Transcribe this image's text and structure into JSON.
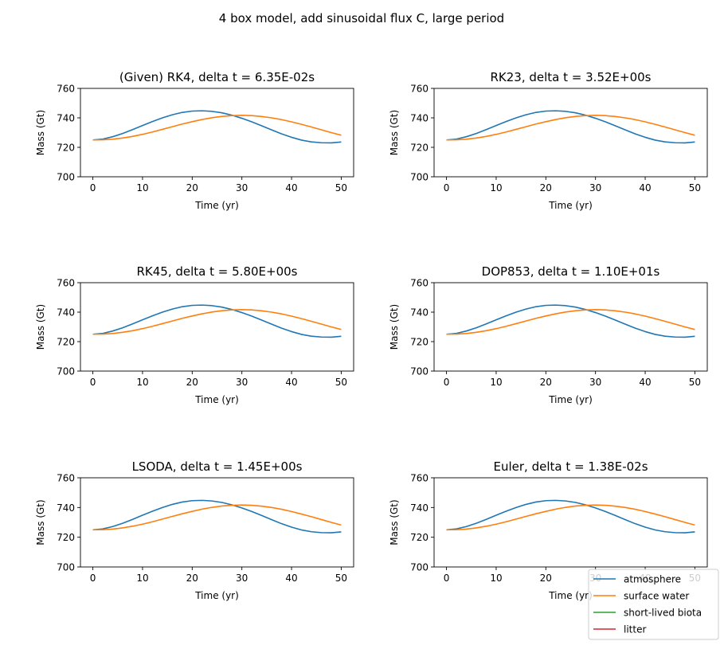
{
  "figure": {
    "title": "4 box model, add sinusoidal flux C, large period"
  },
  "chart_data": [
    {
      "type": "line",
      "title": "(Given) RK4, delta t = 6.35E-02s",
      "xlabel": "Time (yr)",
      "ylabel": "Mass (Gt)",
      "xlim": [
        -2.5,
        52.5
      ],
      "ylim": [
        700,
        760
      ],
      "xticks": [
        0,
        10,
        20,
        30,
        40,
        50
      ],
      "yticks": [
        700,
        720,
        740,
        760
      ],
      "series": [
        {
          "name": "atmosphere",
          "color": "#1f77b4",
          "x": [
            0,
            2,
            4,
            6,
            8,
            10,
            12,
            14,
            16,
            18,
            20,
            22,
            24,
            26,
            28,
            30,
            32,
            34,
            36,
            38,
            40,
            42,
            44,
            46,
            48,
            50
          ],
          "y": [
            725,
            725.6,
            727.2,
            729.4,
            732.0,
            734.8,
            737.5,
            740.0,
            742.1,
            743.7,
            744.6,
            744.8,
            744.4,
            743.4,
            741.8,
            739.7,
            737.3,
            734.6,
            731.8,
            729.1,
            726.8,
            724.9,
            723.7,
            723.1,
            723.0,
            723.6
          ]
        },
        {
          "name": "surface water",
          "color": "#ff7f0e",
          "x": [
            0,
            2,
            4,
            6,
            8,
            10,
            12,
            14,
            16,
            18,
            20,
            22,
            24,
            26,
            28,
            30,
            32,
            34,
            36,
            38,
            40,
            42,
            44,
            46,
            48,
            50
          ],
          "y": [
            725,
            725.1,
            725.5,
            726.3,
            727.4,
            728.8,
            730.4,
            732.2,
            734.0,
            735.8,
            737.4,
            738.9,
            740.1,
            741.0,
            741.5,
            741.7,
            741.5,
            740.9,
            740.0,
            738.8,
            737.3,
            735.6,
            733.8,
            731.9,
            730.0,
            728.2
          ]
        },
        {
          "name": "short-lived biota",
          "color": "#2ca02c",
          "x": [],
          "y": []
        },
        {
          "name": "litter",
          "color": "#d62728",
          "x": [],
          "y": []
        }
      ]
    },
    {
      "type": "line",
      "title": "RK23, delta t = 3.52E+00s",
      "xlabel": "Time (yr)",
      "ylabel": "Mass (Gt)",
      "xlim": [
        -2.5,
        52.5
      ],
      "ylim": [
        700,
        760
      ],
      "xticks": [
        0,
        10,
        20,
        30,
        40,
        50
      ],
      "yticks": [
        700,
        720,
        740,
        760
      ],
      "series": [
        {
          "name": "atmosphere",
          "color": "#1f77b4",
          "x": [
            0,
            2,
            4,
            6,
            8,
            10,
            12,
            14,
            16,
            18,
            20,
            22,
            24,
            26,
            28,
            30,
            32,
            34,
            36,
            38,
            40,
            42,
            44,
            46,
            48,
            50
          ],
          "y": [
            725,
            725.6,
            727.2,
            729.4,
            732.0,
            734.8,
            737.5,
            740.0,
            742.1,
            743.7,
            744.6,
            744.8,
            744.4,
            743.4,
            741.8,
            739.7,
            737.3,
            734.6,
            731.8,
            729.1,
            726.8,
            724.9,
            723.7,
            723.1,
            723.0,
            723.6
          ]
        },
        {
          "name": "surface water",
          "color": "#ff7f0e",
          "x": [
            0,
            2,
            4,
            6,
            8,
            10,
            12,
            14,
            16,
            18,
            20,
            22,
            24,
            26,
            28,
            30,
            32,
            34,
            36,
            38,
            40,
            42,
            44,
            46,
            48,
            50
          ],
          "y": [
            725,
            725.1,
            725.5,
            726.3,
            727.4,
            728.8,
            730.4,
            732.2,
            734.0,
            735.8,
            737.4,
            738.9,
            740.1,
            741.0,
            741.5,
            741.7,
            741.5,
            740.9,
            740.0,
            738.8,
            737.3,
            735.6,
            733.8,
            731.9,
            730.0,
            728.2
          ]
        },
        {
          "name": "short-lived biota",
          "color": "#2ca02c",
          "x": [],
          "y": []
        },
        {
          "name": "litter",
          "color": "#d62728",
          "x": [],
          "y": []
        }
      ]
    },
    {
      "type": "line",
      "title": "RK45, delta t = 5.80E+00s",
      "xlabel": "Time (yr)",
      "ylabel": "Mass (Gt)",
      "xlim": [
        -2.5,
        52.5
      ],
      "ylim": [
        700,
        760
      ],
      "xticks": [
        0,
        10,
        20,
        30,
        40,
        50
      ],
      "yticks": [
        700,
        720,
        740,
        760
      ],
      "series": [
        {
          "name": "atmosphere",
          "color": "#1f77b4",
          "x": [
            0,
            2,
            4,
            6,
            8,
            10,
            12,
            14,
            16,
            18,
            20,
            22,
            24,
            26,
            28,
            30,
            32,
            34,
            36,
            38,
            40,
            42,
            44,
            46,
            48,
            50
          ],
          "y": [
            725,
            725.6,
            727.2,
            729.4,
            732.0,
            734.8,
            737.5,
            740.0,
            742.1,
            743.7,
            744.6,
            744.8,
            744.4,
            743.4,
            741.8,
            739.7,
            737.3,
            734.6,
            731.8,
            729.1,
            726.8,
            724.9,
            723.7,
            723.1,
            723.0,
            723.6
          ]
        },
        {
          "name": "surface water",
          "color": "#ff7f0e",
          "x": [
            0,
            2,
            4,
            6,
            8,
            10,
            12,
            14,
            16,
            18,
            20,
            22,
            24,
            26,
            28,
            30,
            32,
            34,
            36,
            38,
            40,
            42,
            44,
            46,
            48,
            50
          ],
          "y": [
            725,
            725.1,
            725.5,
            726.3,
            727.4,
            728.8,
            730.4,
            732.2,
            734.0,
            735.8,
            737.4,
            738.9,
            740.1,
            741.0,
            741.5,
            741.7,
            741.5,
            740.9,
            740.0,
            738.8,
            737.3,
            735.6,
            733.8,
            731.9,
            730.0,
            728.2
          ]
        },
        {
          "name": "short-lived biota",
          "color": "#2ca02c",
          "x": [],
          "y": []
        },
        {
          "name": "litter",
          "color": "#d62728",
          "x": [],
          "y": []
        }
      ]
    },
    {
      "type": "line",
      "title": "DOP853, delta t = 1.10E+01s",
      "xlabel": "Time (yr)",
      "ylabel": "Mass (Gt)",
      "xlim": [
        -2.5,
        52.5
      ],
      "ylim": [
        700,
        760
      ],
      "xticks": [
        0,
        10,
        20,
        30,
        40,
        50
      ],
      "yticks": [
        700,
        720,
        740,
        760
      ],
      "series": [
        {
          "name": "atmosphere",
          "color": "#1f77b4",
          "x": [
            0,
            2,
            4,
            6,
            8,
            10,
            12,
            14,
            16,
            18,
            20,
            22,
            24,
            26,
            28,
            30,
            32,
            34,
            36,
            38,
            40,
            42,
            44,
            46,
            48,
            50
          ],
          "y": [
            725,
            725.6,
            727.2,
            729.4,
            732.0,
            734.8,
            737.5,
            740.0,
            742.1,
            743.7,
            744.6,
            744.8,
            744.4,
            743.4,
            741.8,
            739.7,
            737.3,
            734.6,
            731.8,
            729.1,
            726.8,
            724.9,
            723.7,
            723.1,
            723.0,
            723.6
          ]
        },
        {
          "name": "surface water",
          "color": "#ff7f0e",
          "x": [
            0,
            2,
            4,
            6,
            8,
            10,
            12,
            14,
            16,
            18,
            20,
            22,
            24,
            26,
            28,
            30,
            32,
            34,
            36,
            38,
            40,
            42,
            44,
            46,
            48,
            50
          ],
          "y": [
            725,
            725.1,
            725.5,
            726.3,
            727.4,
            728.8,
            730.4,
            732.2,
            734.0,
            735.8,
            737.4,
            738.9,
            740.1,
            741.0,
            741.5,
            741.7,
            741.5,
            740.9,
            740.0,
            738.8,
            737.3,
            735.6,
            733.8,
            731.9,
            730.0,
            728.2
          ]
        },
        {
          "name": "short-lived biota",
          "color": "#2ca02c",
          "x": [],
          "y": []
        },
        {
          "name": "litter",
          "color": "#d62728",
          "x": [],
          "y": []
        }
      ]
    },
    {
      "type": "line",
      "title": "LSODA, delta t = 1.45E+00s",
      "xlabel": "Time (yr)",
      "ylabel": "Mass (Gt)",
      "xlim": [
        -2.5,
        52.5
      ],
      "ylim": [
        700,
        760
      ],
      "xticks": [
        0,
        10,
        20,
        30,
        40,
        50
      ],
      "yticks": [
        700,
        720,
        740,
        760
      ],
      "series": [
        {
          "name": "atmosphere",
          "color": "#1f77b4",
          "x": [
            0,
            2,
            4,
            6,
            8,
            10,
            12,
            14,
            16,
            18,
            20,
            22,
            24,
            26,
            28,
            30,
            32,
            34,
            36,
            38,
            40,
            42,
            44,
            46,
            48,
            50
          ],
          "y": [
            725,
            725.6,
            727.2,
            729.4,
            732.0,
            734.8,
            737.5,
            740.0,
            742.1,
            743.7,
            744.6,
            744.8,
            744.4,
            743.4,
            741.8,
            739.7,
            737.3,
            734.6,
            731.8,
            729.1,
            726.8,
            724.9,
            723.7,
            723.1,
            723.0,
            723.6
          ]
        },
        {
          "name": "surface water",
          "color": "#ff7f0e",
          "x": [
            0,
            2,
            4,
            6,
            8,
            10,
            12,
            14,
            16,
            18,
            20,
            22,
            24,
            26,
            28,
            30,
            32,
            34,
            36,
            38,
            40,
            42,
            44,
            46,
            48,
            50
          ],
          "y": [
            725,
            725.1,
            725.5,
            726.3,
            727.4,
            728.8,
            730.4,
            732.2,
            734.0,
            735.8,
            737.4,
            738.9,
            740.1,
            741.0,
            741.5,
            741.7,
            741.5,
            740.9,
            740.0,
            738.8,
            737.3,
            735.6,
            733.8,
            731.9,
            730.0,
            728.2
          ]
        },
        {
          "name": "short-lived biota",
          "color": "#2ca02c",
          "x": [],
          "y": []
        },
        {
          "name": "litter",
          "color": "#d62728",
          "x": [],
          "y": []
        }
      ]
    },
    {
      "type": "line",
      "title": "Euler, delta t = 1.38E-02s",
      "xlabel": "Time (yr)",
      "ylabel": "Mass (Gt)",
      "xlim": [
        -2.5,
        52.5
      ],
      "ylim": [
        700,
        760
      ],
      "xticks": [
        0,
        10,
        20,
        30,
        40,
        50
      ],
      "yticks": [
        700,
        720,
        740,
        760
      ],
      "series": [
        {
          "name": "atmosphere",
          "color": "#1f77b4",
          "x": [
            0,
            2,
            4,
            6,
            8,
            10,
            12,
            14,
            16,
            18,
            20,
            22,
            24,
            26,
            28,
            30,
            32,
            34,
            36,
            38,
            40,
            42,
            44,
            46,
            48,
            50
          ],
          "y": [
            725,
            725.6,
            727.2,
            729.4,
            732.0,
            734.8,
            737.5,
            740.0,
            742.1,
            743.7,
            744.6,
            744.8,
            744.4,
            743.4,
            741.8,
            739.7,
            737.3,
            734.6,
            731.8,
            729.1,
            726.8,
            724.9,
            723.7,
            723.1,
            723.0,
            723.6
          ]
        },
        {
          "name": "surface water",
          "color": "#ff7f0e",
          "x": [
            0,
            2,
            4,
            6,
            8,
            10,
            12,
            14,
            16,
            18,
            20,
            22,
            24,
            26,
            28,
            30,
            32,
            34,
            36,
            38,
            40,
            42,
            44,
            46,
            48,
            50
          ],
          "y": [
            725,
            725.1,
            725.5,
            726.3,
            727.4,
            728.8,
            730.4,
            732.2,
            734.0,
            735.8,
            737.4,
            738.9,
            740.1,
            741.0,
            741.5,
            741.7,
            741.5,
            740.9,
            740.0,
            738.8,
            737.3,
            735.6,
            733.8,
            731.9,
            730.0,
            728.2
          ]
        },
        {
          "name": "short-lived biota",
          "color": "#2ca02c",
          "x": [],
          "y": []
        },
        {
          "name": "litter",
          "color": "#d62728",
          "x": [],
          "y": []
        }
      ]
    }
  ],
  "legend": {
    "position": "bottom-right",
    "entries": [
      {
        "label": "atmosphere",
        "color": "#1f77b4"
      },
      {
        "label": "surface water",
        "color": "#ff7f0e"
      },
      {
        "label": "short-lived biota",
        "color": "#2ca02c"
      },
      {
        "label": "litter",
        "color": "#d62728"
      }
    ]
  }
}
